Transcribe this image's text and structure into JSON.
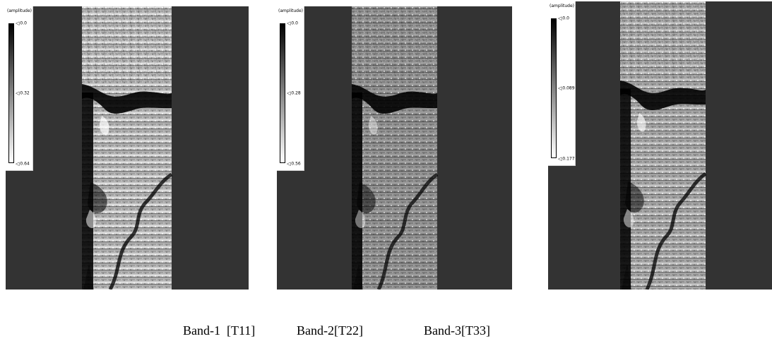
{
  "panels": [
    {
      "id": "band-1",
      "colorbar": {
        "title": "(amplitude)",
        "ticks": {
          "top": "0.0",
          "mid": "0.32",
          "bottom": "0.64"
        }
      }
    },
    {
      "id": "band-2",
      "colorbar": {
        "title": "(amplitude)",
        "ticks": {
          "top": "0.0",
          "mid": "0.28",
          "bottom": "0.56"
        }
      }
    },
    {
      "id": "band-3",
      "colorbar": {
        "title": "(amplitude)",
        "ticks": {
          "top": "0.0",
          "mid": "0.089",
          "bottom": "0.177"
        }
      }
    }
  ],
  "caption": {
    "band1": "Band-1  [T11]",
    "band2": "Band-2[T22]",
    "band3": "Band-3[T33]"
  },
  "colors": {
    "panel_background": "#333333",
    "caption_text": "#000000"
  }
}
